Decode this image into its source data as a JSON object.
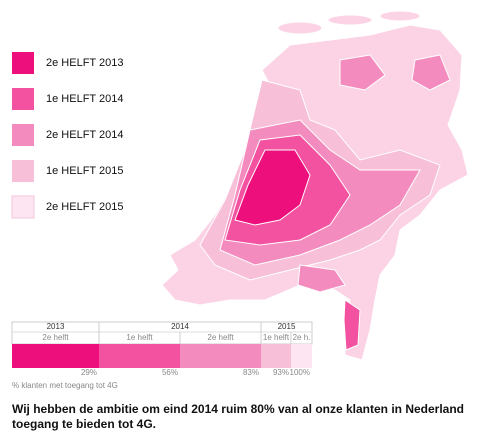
{
  "legend": [
    {
      "label": "2e HELFT 2013",
      "color": "#ec0f7c"
    },
    {
      "label": "1e HELFT 2014",
      "color": "#f2529f"
    },
    {
      "label": "2e HELFT 2014",
      "color": "#f48bbf"
    },
    {
      "label": "1e HELFT 2015",
      "color": "#f8bfd9"
    },
    {
      "label": "2e HELFT 2015",
      "color": "#fde6f1"
    }
  ],
  "timeline": {
    "years": [
      {
        "label": "2013",
        "halves": [
          {
            "label": "2e helft",
            "value": 29,
            "value_label": "29%"
          }
        ]
      },
      {
        "label": "2014",
        "halves": [
          {
            "label": "1e helft",
            "value": 56,
            "value_label": "56%"
          },
          {
            "label": "2e helft",
            "value": 83,
            "value_label": "83%"
          }
        ]
      },
      {
        "label": "2015",
        "halves": [
          {
            "label": "1e helft",
            "value": 93,
            "value_label": "93%"
          },
          {
            "label": "2e h.",
            "value": 100,
            "value_label": "100%"
          }
        ]
      }
    ],
    "caption": "% klanten met toegang tot 4G"
  },
  "footer": "Wij hebben de ambitie om eind 2014 ruim 80% van al onze klanten in Nederland toegang te bieden tot 4G."
}
